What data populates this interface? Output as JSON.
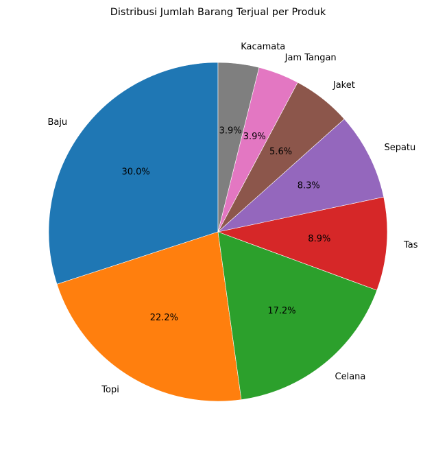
{
  "chart_data": {
    "type": "pie",
    "title": "Distribusi Jumlah Barang Terjual per Produk",
    "categories": [
      "Baju",
      "Topi",
      "Celana",
      "Tas",
      "Sepatu",
      "Jaket",
      "Jam Tangan",
      "Kacamata"
    ],
    "values": [
      30.0,
      22.2,
      17.2,
      8.9,
      8.3,
      5.6,
      3.9,
      3.9
    ],
    "value_labels": [
      "30.0%",
      "22.2%",
      "17.2%",
      "8.9%",
      "8.3%",
      "5.6%",
      "3.9%",
      "3.9%"
    ],
    "colors": [
      "#1f77b4",
      "#ff7f0e",
      "#2ca02c",
      "#d62728",
      "#9467bd",
      "#8c564b",
      "#e377c2",
      "#7f7f7f"
    ],
    "start_angle_deg": 90,
    "direction": "counterclockwise",
    "legend": false
  }
}
